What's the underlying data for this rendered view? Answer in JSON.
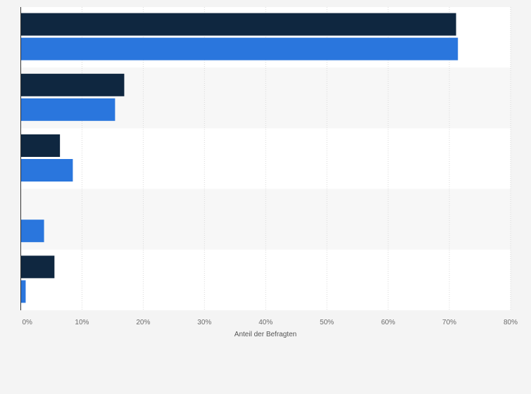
{
  "chart_data": {
    "type": "bar",
    "orientation": "horizontal",
    "xlabel": "Anteil der Befragten",
    "xlim": [
      0,
      80
    ],
    "x_ticks": [
      0,
      10,
      20,
      30,
      40,
      50,
      60,
      70,
      80
    ],
    "x_tick_labels": [
      "0%",
      "10%",
      "20%",
      "30%",
      "40%",
      "50%",
      "60%",
      "70%",
      "80%"
    ],
    "grid": true,
    "category_count": 5,
    "series": [
      {
        "color": "#0f2740",
        "values": [
          71.1,
          16.9,
          6.4,
          0,
          5.5
        ]
      },
      {
        "color": "#2a76dd",
        "values": [
          71.4,
          15.4,
          8.5,
          3.8,
          0.8
        ]
      }
    ]
  }
}
